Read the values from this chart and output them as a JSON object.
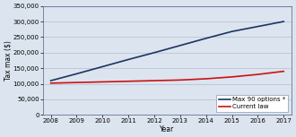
{
  "years": [
    2008,
    2009,
    2010,
    2011,
    2012,
    2013,
    2014,
    2015,
    2016,
    2017
  ],
  "max90_values": [
    110000,
    132000,
    155000,
    178000,
    200000,
    223000,
    246000,
    268000,
    284000,
    300000
  ],
  "current_law_values": [
    102000,
    104000,
    106000,
    108000,
    110000,
    112000,
    116000,
    122000,
    130000,
    140000
  ],
  "line1_color": "#1a3560",
  "line2_color": "#cc1111",
  "ylabel": "Tax max ($)",
  "xlabel": "Year",
  "legend_label1": "Max 90 options *",
  "legend_label2": "Current law",
  "ylim": [
    0,
    350000
  ],
  "yticks": [
    0,
    50000,
    100000,
    150000,
    200000,
    250000,
    300000,
    350000
  ],
  "xlim_min": 2008,
  "xlim_max": 2017,
  "background_color": "#dce4ef",
  "plot_bg_color": "#dce4ef",
  "grid_color": "#b8c4d8",
  "axis_fontsize": 5.5,
  "tick_fontsize": 5.0,
  "legend_fontsize": 5.0,
  "line_width": 1.2
}
